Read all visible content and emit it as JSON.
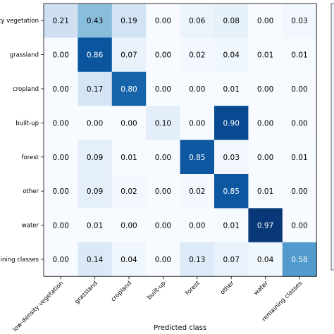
{
  "chart_data": {
    "type": "heatmap",
    "title": "",
    "xlabel": "Predicted class",
    "ylabel": "",
    "x_categories": [
      "low-density vegetation",
      "grassland",
      "cropland",
      "built-up",
      "forest",
      "other",
      "water",
      "remaining classes"
    ],
    "y_categories": [
      "low-density vegetation",
      "grassland",
      "cropland",
      "built-up",
      "forest",
      "other",
      "water",
      "remaining classes"
    ],
    "y_tick_labels": [
      "density vegetation",
      "grassland",
      "cropland",
      "built-up",
      "forest",
      "other",
      "water",
      "remaining classes"
    ],
    "values": [
      [
        0.21,
        0.43,
        0.19,
        0.0,
        0.06,
        0.08,
        0.0,
        0.03
      ],
      [
        0.0,
        0.86,
        0.07,
        0.0,
        0.02,
        0.04,
        0.01,
        0.01
      ],
      [
        0.0,
        0.17,
        0.8,
        0.0,
        0.0,
        0.01,
        0.0,
        0.0
      ],
      [
        0.0,
        0.0,
        0.0,
        0.1,
        0.0,
        0.9,
        0.0,
        0.0
      ],
      [
        0.0,
        0.09,
        0.01,
        0.0,
        0.85,
        0.03,
        0.0,
        0.01
      ],
      [
        0.0,
        0.09,
        0.02,
        0.0,
        0.02,
        0.85,
        0.01,
        0.0
      ],
      [
        0.0,
        0.01,
        0.0,
        0.0,
        0.0,
        0.01,
        0.97,
        0.0
      ],
      [
        0.0,
        0.14,
        0.04,
        0.0,
        0.13,
        0.07,
        0.04,
        0.58
      ]
    ],
    "value_range": [
      0,
      1
    ],
    "colormap": "Blues",
    "colors": {
      "low": "#f7fbff",
      "high": "#08306b",
      "text_dark": "#000000",
      "text_light": "#ffffff"
    }
  }
}
